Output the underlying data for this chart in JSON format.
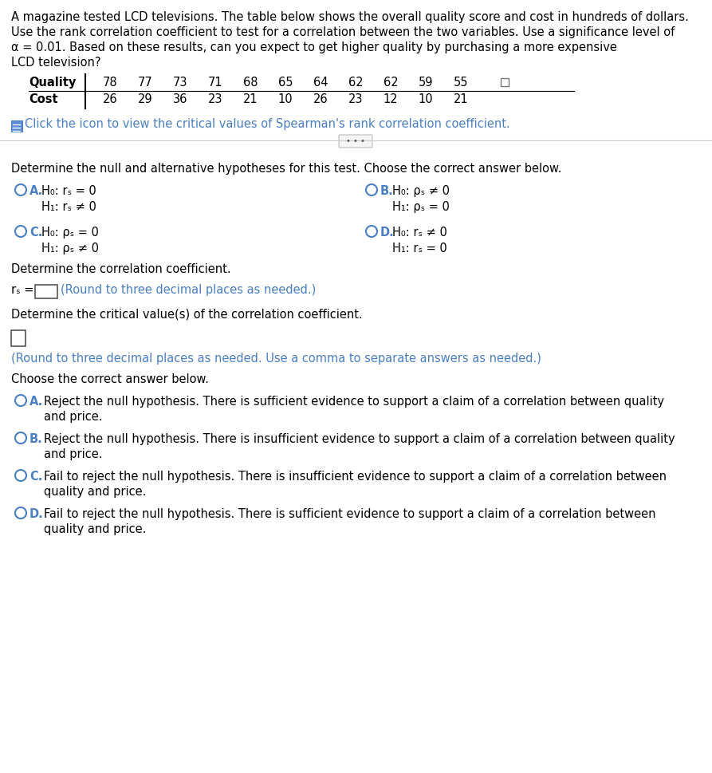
{
  "bg_color": "#ffffff",
  "text_color": "#000000",
  "link_color": "#4a7fc1",
  "intro_lines": [
    "A magazine tested LCD televisions. The table below shows the overall quality score and cost in hundreds of dollars.",
    "Use the rank correlation coefficient to test for a correlation between the two variables. Use a significance level of",
    "α = 0.01. Based on these results, can you expect to get higher quality by purchasing a more expensive",
    "LCD television?"
  ],
  "quality_vals": [
    "78",
    "77",
    "73",
    "71",
    "68",
    "65",
    "64",
    "62",
    "62",
    "59",
    "55"
  ],
  "cost_vals": [
    "26",
    "29",
    "36",
    "23",
    "21",
    "10",
    "26",
    "23",
    "12",
    "10",
    "21"
  ],
  "click_icon_text": "Click the icon to view the critical values of Spearman's rank correlation coefficient.",
  "section1_title": "Determine the null and alternative hypotheses for this test. Choose the correct answer below.",
  "hyp_options": [
    [
      "A.",
      "H₀: rₛ = 0",
      "H₁: rₛ ≠ 0"
    ],
    [
      "B.",
      "H₀: ρₛ ≠ 0",
      "H₁: ρₛ = 0"
    ],
    [
      "C.",
      "H₀: ρₛ = 0",
      "H₁: ρₛ ≠ 0"
    ],
    [
      "D.",
      "H₀: rₛ ≠ 0",
      "H₁: rₛ = 0"
    ]
  ],
  "section2_title": "Determine the correlation coefficient.",
  "rs_hint": "(Round to three decimal places as needed.)",
  "section3_title": "Determine the critical value(s) of the correlation coefficient.",
  "critical_hint": "(Round to three decimal places as needed. Use a comma to separate answers as needed.)",
  "section4_title": "Choose the correct answer below.",
  "final_options": [
    [
      "A.",
      "Reject the null hypothesis. There is sufficient evidence to support a claim of a correlation between quality",
      "and price."
    ],
    [
      "B.",
      "Reject the null hypothesis. There is insufficient evidence to support a claim of a correlation between quality",
      "and price."
    ],
    [
      "C.",
      "Fail to reject the null hypothesis. There is insufficient evidence to support a claim of a correlation between",
      "quality and price."
    ],
    [
      "D.",
      "Fail to reject the null hypothesis. There is sufficient evidence to support a claim of a correlation between",
      "quality and price."
    ]
  ]
}
